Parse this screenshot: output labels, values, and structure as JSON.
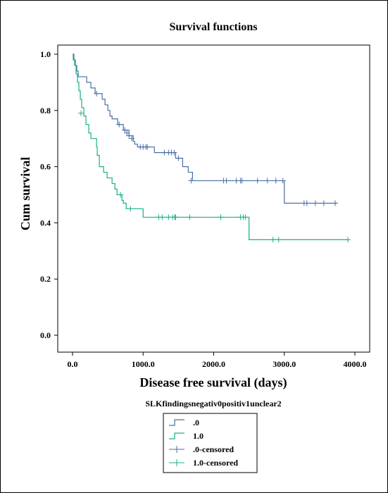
{
  "chart_data": {
    "type": "line",
    "subtype": "kaplan-meier step",
    "title": "Survival functions",
    "xlabel": "Disease free survival (days)",
    "ylabel": "Cum survival",
    "xlim": [
      0,
      4000
    ],
    "ylim": [
      0,
      1
    ],
    "xticks": [
      0,
      1000,
      2000,
      3000,
      4000
    ],
    "xtick_labels": [
      "0.0",
      "1000.0",
      "2000.0",
      "3000.0",
      "4000.0"
    ],
    "yticks": [
      0,
      0.2,
      0.4,
      0.6,
      0.8,
      1.0
    ],
    "ytick_labels": [
      "0.0",
      "0.2",
      "0.4",
      "0.6",
      "0.8",
      "1.0"
    ],
    "grid": false,
    "legend_title": "SLKfindingsnegativ0positiv1unclear2",
    "legend_position": "bottom",
    "legend": [
      {
        "label": ".0",
        "marker": "step",
        "color": "#4a6fa5"
      },
      {
        "label": "1.0",
        "marker": "step",
        "color": "#1aaf8a"
      },
      {
        "label": ".0-censored",
        "marker": "plus",
        "color": "#4a6fa5"
      },
      {
        "label": "1.0-censored",
        "marker": "plus",
        "color": "#1aaf8a"
      }
    ],
    "series": [
      {
        "name": ".0",
        "color": "#4a6fa5",
        "steps": [
          [
            0,
            1.0
          ],
          [
            20,
            0.98
          ],
          [
            40,
            0.96
          ],
          [
            60,
            0.94
          ],
          [
            80,
            0.92
          ],
          [
            200,
            0.9
          ],
          [
            260,
            0.88
          ],
          [
            320,
            0.86
          ],
          [
            420,
            0.84
          ],
          [
            460,
            0.82
          ],
          [
            500,
            0.8
          ],
          [
            530,
            0.78
          ],
          [
            560,
            0.77
          ],
          [
            640,
            0.75
          ],
          [
            720,
            0.73
          ],
          [
            800,
            0.71
          ],
          [
            860,
            0.69
          ],
          [
            880,
            0.68
          ],
          [
            920,
            0.67
          ],
          [
            1160,
            0.65
          ],
          [
            1460,
            0.63
          ],
          [
            1560,
            0.6
          ],
          [
            1640,
            0.58
          ],
          [
            1700,
            0.55
          ],
          [
            3000,
            0.47
          ]
        ],
        "end_x": 3750,
        "censored": [
          [
            340,
            0.86
          ],
          [
            660,
            0.75
          ],
          [
            740,
            0.73
          ],
          [
            770,
            0.72
          ],
          [
            800,
            0.71
          ],
          [
            840,
            0.7
          ],
          [
            960,
            0.67
          ],
          [
            1000,
            0.67
          ],
          [
            1040,
            0.67
          ],
          [
            1060,
            0.67
          ],
          [
            1300,
            0.65
          ],
          [
            1360,
            0.65
          ],
          [
            1400,
            0.65
          ],
          [
            1440,
            0.65
          ],
          [
            1500,
            0.63
          ],
          [
            1680,
            0.55
          ],
          [
            2140,
            0.55
          ],
          [
            2180,
            0.55
          ],
          [
            2320,
            0.55
          ],
          [
            2380,
            0.55
          ],
          [
            2400,
            0.55
          ],
          [
            2620,
            0.55
          ],
          [
            2760,
            0.55
          ],
          [
            2880,
            0.55
          ],
          [
            2980,
            0.55
          ],
          [
            3280,
            0.47
          ],
          [
            3320,
            0.47
          ],
          [
            3440,
            0.47
          ],
          [
            3560,
            0.47
          ],
          [
            3720,
            0.47
          ]
        ]
      },
      {
        "name": "1.0",
        "color": "#1aaf8a",
        "steps": [
          [
            0,
            1.0
          ],
          [
            10,
            0.98
          ],
          [
            30,
            0.96
          ],
          [
            50,
            0.93
          ],
          [
            70,
            0.9
          ],
          [
            90,
            0.87
          ],
          [
            110,
            0.84
          ],
          [
            130,
            0.81
          ],
          [
            160,
            0.78
          ],
          [
            190,
            0.75
          ],
          [
            230,
            0.72
          ],
          [
            260,
            0.7
          ],
          [
            340,
            0.67
          ],
          [
            350,
            0.64
          ],
          [
            380,
            0.6
          ],
          [
            440,
            0.58
          ],
          [
            490,
            0.56
          ],
          [
            560,
            0.54
          ],
          [
            600,
            0.52
          ],
          [
            630,
            0.5
          ],
          [
            700,
            0.48
          ],
          [
            720,
            0.47
          ],
          [
            760,
            0.45
          ],
          [
            1000,
            0.42
          ],
          [
            2500,
            0.34
          ]
        ],
        "end_x": 3900,
        "censored": [
          [
            120,
            0.79
          ],
          [
            680,
            0.5
          ],
          [
            820,
            0.45
          ],
          [
            1220,
            0.42
          ],
          [
            1270,
            0.42
          ],
          [
            1360,
            0.42
          ],
          [
            1420,
            0.42
          ],
          [
            1450,
            0.42
          ],
          [
            1460,
            0.42
          ],
          [
            1660,
            0.42
          ],
          [
            2100,
            0.42
          ],
          [
            2380,
            0.42
          ],
          [
            2420,
            0.42
          ],
          [
            2450,
            0.42
          ],
          [
            2840,
            0.34
          ],
          [
            2920,
            0.34
          ],
          [
            3900,
            0.34
          ]
        ]
      }
    ]
  }
}
